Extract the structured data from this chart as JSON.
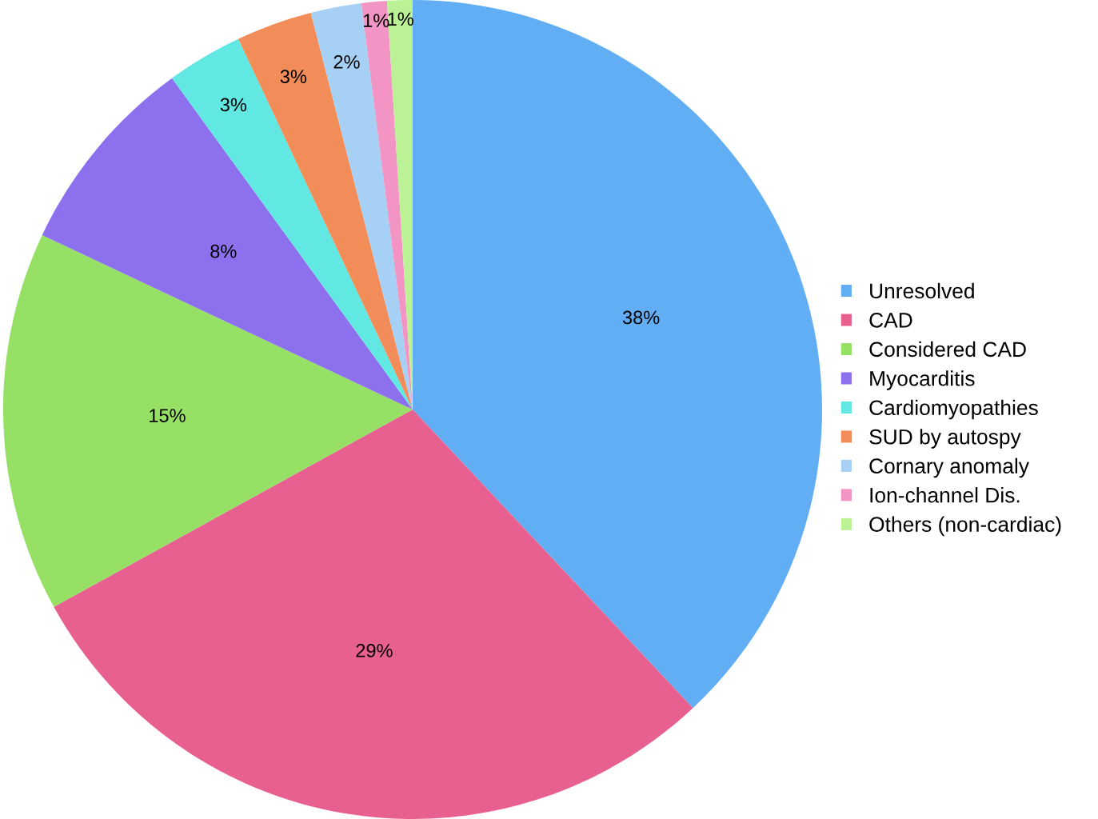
{
  "chart_data": {
    "type": "pie",
    "categories": [
      "Unresolved",
      "CAD",
      "Considered CAD",
      "Myocarditis",
      "Cardiomyopathies",
      "SUD by autospy",
      "Cornary anomaly",
      "Ion-channel Dis.",
      "Others (non-cardiac)"
    ],
    "values": [
      38,
      29,
      15,
      8,
      3,
      3,
      2,
      1,
      1
    ],
    "value_labels": [
      "38%",
      "29%",
      "15%",
      "8%",
      "3%",
      "3%",
      "2%",
      "1%",
      "1%"
    ],
    "colors": [
      "#62aef5",
      "#e8608f",
      "#96e066",
      "#8c70ee",
      "#62e8e2",
      "#f28c58",
      "#a6d0f4",
      "#f294c4",
      "#bcf296"
    ],
    "legend": "right"
  }
}
